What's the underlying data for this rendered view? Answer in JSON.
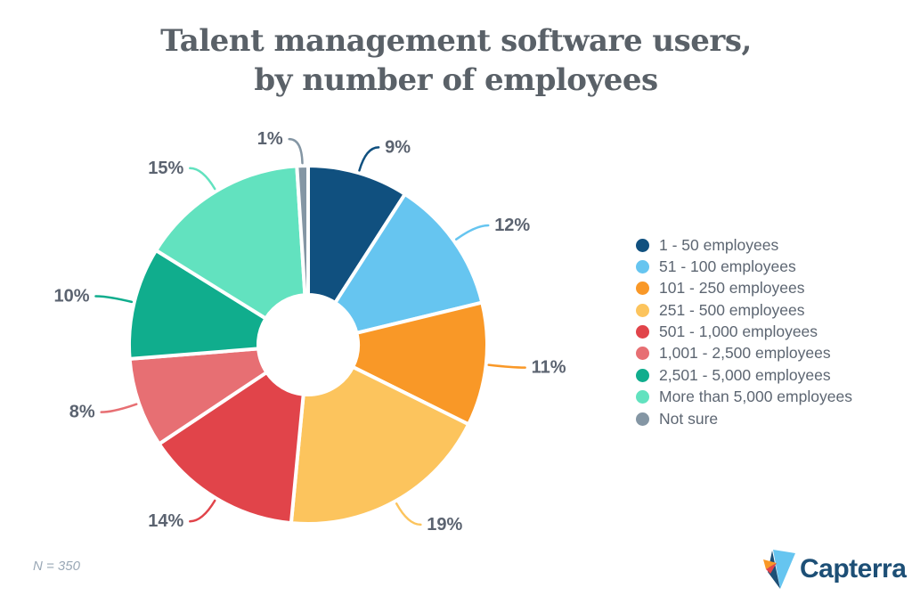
{
  "header": {
    "title_line1": "Talent management software users,",
    "title_line2": "by number of employees"
  },
  "chart_data": {
    "type": "pie",
    "subtype": "donut",
    "title": "Talent management software users, by number of employees",
    "unit": "%",
    "legend_position": "right",
    "start_angle_deg": 0,
    "direction": "clockwise",
    "categories": [
      "1 - 50 employees",
      "51 - 100 employees",
      "101 - 250 employees",
      "251 - 500 employees",
      "501 - 1,000 employees",
      "1,001 - 2,500 employees",
      "2,501 - 5,000 employees",
      "More than 5,000 employees",
      "Not sure"
    ],
    "values": [
      9,
      12,
      11,
      19,
      14,
      8,
      10,
      15,
      1
    ],
    "labels": [
      "9%",
      "12%",
      "11%",
      "19%",
      "14%",
      "8%",
      "10%",
      "15%",
      "1%"
    ],
    "colors": [
      "#10507f",
      "#66c5f0",
      "#f99827",
      "#fcc45d",
      "#e1444a",
      "#e76f73",
      "#10ad8d",
      "#62e2bf",
      "#8496a4"
    ]
  },
  "style": {
    "label_color": "#5b6370",
    "slice_gap_color": "#ffffff"
  },
  "footer": {
    "note": "N = 350",
    "logo_text": "Capterra"
  },
  "logo_colors": {
    "blue": "#66c5f0",
    "navy": "#1d4f76",
    "orange": "#f99827",
    "red": "#e1444a"
  }
}
